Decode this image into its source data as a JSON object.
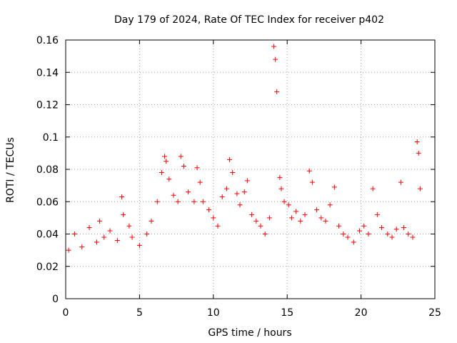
{
  "chart_data": {
    "type": "scatter",
    "title": "Day 179 of 2024, Rate Of TEC Index for receiver p402",
    "xlabel": "GPS time / hours",
    "ylabel": "ROTI / TECUs",
    "xlim": [
      0,
      25
    ],
    "ylim": [
      0,
      0.16
    ],
    "x_ticks": [
      "0",
      "5",
      "10",
      "15",
      "20",
      "25"
    ],
    "y_ticks": [
      "0",
      "0.02",
      "0.04",
      "0.06",
      "0.08",
      "0.1",
      "0.12",
      "0.14",
      "0.16"
    ],
    "grid": true,
    "marker": "+",
    "color": "#ff0000",
    "series": [
      {
        "x": [
          0.2,
          0.6,
          1.1,
          1.6,
          2.1,
          2.3,
          2.6,
          3.0,
          3.5,
          3.8,
          3.9,
          4.3,
          4.5,
          5.0,
          5.5,
          5.8,
          6.2,
          6.5,
          6.7,
          6.8,
          7.0,
          7.3,
          7.6,
          7.8,
          8.0,
          8.3,
          8.7,
          8.9,
          9.1,
          9.3,
          9.7,
          10.0,
          10.3,
          10.6,
          10.9,
          11.1,
          11.3,
          11.6,
          11.8,
          12.1,
          12.3,
          12.6,
          12.9,
          13.2,
          13.5,
          13.8,
          14.1,
          14.2,
          14.3,
          14.5,
          14.6,
          14.8,
          15.1,
          15.3,
          15.6,
          15.9,
          16.2,
          16.5,
          16.7,
          17.0,
          17.3,
          17.6,
          17.9,
          18.2,
          18.5,
          18.8,
          19.1,
          19.5,
          19.9,
          20.2,
          20.5,
          20.8,
          21.1,
          21.4,
          21.8,
          22.1,
          22.4,
          22.7,
          22.9,
          23.2,
          23.5,
          23.8,
          23.9,
          24.0
        ],
        "y": [
          0.03,
          0.04,
          0.032,
          0.044,
          0.035,
          0.048,
          0.038,
          0.042,
          0.036,
          0.063,
          0.052,
          0.045,
          0.038,
          0.033,
          0.04,
          0.048,
          0.06,
          0.078,
          0.088,
          0.085,
          0.074,
          0.064,
          0.06,
          0.088,
          0.082,
          0.066,
          0.06,
          0.081,
          0.072,
          0.06,
          0.055,
          0.05,
          0.045,
          0.063,
          0.068,
          0.086,
          0.078,
          0.065,
          0.058,
          0.066,
          0.073,
          0.052,
          0.048,
          0.045,
          0.04,
          0.05,
          0.156,
          0.148,
          0.128,
          0.075,
          0.068,
          0.06,
          0.058,
          0.05,
          0.054,
          0.048,
          0.052,
          0.079,
          0.072,
          0.055,
          0.05,
          0.048,
          0.058,
          0.069,
          0.045,
          0.04,
          0.038,
          0.035,
          0.042,
          0.045,
          0.04,
          0.068,
          0.052,
          0.044,
          0.04,
          0.038,
          0.043,
          0.072,
          0.044,
          0.04,
          0.038,
          0.097,
          0.09,
          0.068
        ]
      }
    ]
  }
}
